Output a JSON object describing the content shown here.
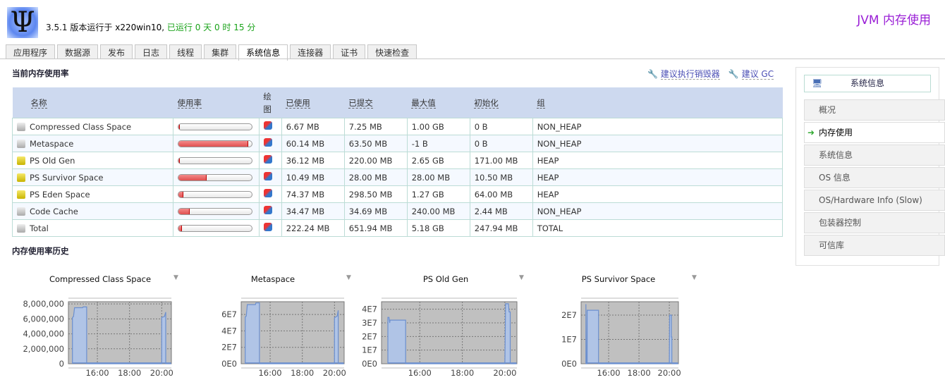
{
  "header": {
    "logo_icon": "psi-logo",
    "version": "3.5.1",
    "runs_on": "版本运行于",
    "host": "x220win10",
    "uptime": "已运行 0 天 0 时 15 分",
    "title": "JVM 内存使用"
  },
  "tabs": [
    {
      "label": "应用程序"
    },
    {
      "label": "数据源"
    },
    {
      "label": "发布"
    },
    {
      "label": "日志"
    },
    {
      "label": "线程"
    },
    {
      "label": "集群"
    },
    {
      "label": "系统信息",
      "active": true
    },
    {
      "label": "连接器"
    },
    {
      "label": "证书"
    },
    {
      "label": "快速检查"
    }
  ],
  "current": {
    "heading": "当前内存使用率",
    "actions": [
      {
        "label": "建议执行销毁器",
        "icon": "wrench-icon"
      },
      {
        "label": "建议 GC",
        "icon": "wrench-icon"
      }
    ],
    "columns": [
      "名称",
      "使用率",
      "绘图",
      "已使用",
      "已提交",
      "最大值",
      "初始化",
      "组"
    ],
    "rows": [
      {
        "name": "Compressed Class Space",
        "usage": 0.7,
        "used": "6.67 MB",
        "committed": "7.25 MB",
        "max": "1.00 GB",
        "init": "0 B",
        "group": "NON_HEAP",
        "heap": false
      },
      {
        "name": "Metaspace",
        "usage": 94.7,
        "used": "60.14 MB",
        "committed": "63.50 MB",
        "max": "-1 B",
        "init": "0 B",
        "group": "NON_HEAP",
        "heap": false
      },
      {
        "name": "PS Old Gen",
        "usage": 1.3,
        "used": "36.12 MB",
        "committed": "220.00 MB",
        "max": "2.65 GB",
        "init": "171.00 MB",
        "group": "HEAP",
        "heap": true
      },
      {
        "name": "PS Survivor Space",
        "usage": 37.5,
        "used": "10.49 MB",
        "committed": "28.00 MB",
        "max": "28.00 MB",
        "init": "10.50 MB",
        "group": "HEAP",
        "heap": true
      },
      {
        "name": "PS Eden Space",
        "usage": 5.7,
        "used": "74.37 MB",
        "committed": "298.50 MB",
        "max": "1.27 GB",
        "init": "64.00 MB",
        "group": "HEAP",
        "heap": true
      },
      {
        "name": "Code Cache",
        "usage": 14.4,
        "used": "34.47 MB",
        "committed": "34.69 MB",
        "max": "240.00 MB",
        "init": "2.44 MB",
        "group": "NON_HEAP",
        "heap": false
      },
      {
        "name": "Total",
        "usage": 4.2,
        "used": "222.24 MB",
        "committed": "651.94 MB",
        "max": "5.18 GB",
        "init": "247.94 MB",
        "group": "TOTAL",
        "heap": false
      }
    ]
  },
  "sidebar": {
    "header": "系统信息",
    "items": [
      {
        "label": "概况"
      },
      {
        "label": "内存使用",
        "current": true
      },
      {
        "label": "系统信息"
      },
      {
        "label": "OS 信息"
      },
      {
        "label": "OS/Hardware Info (Slow)"
      },
      {
        "label": "包装器控制"
      },
      {
        "label": "可信库"
      }
    ]
  },
  "history": {
    "heading": "内存使用率历史"
  },
  "chart_data": [
    {
      "type": "area",
      "title": "Compressed Class Space",
      "xlim": [
        "14:12",
        "20:36"
      ],
      "xticks": [
        "16:00",
        "18:00",
        "20:00"
      ],
      "ylim": [
        0,
        8300000
      ],
      "yticks": [
        0,
        2000000,
        4000000,
        6000000,
        8000000
      ],
      "ytick_labels": [
        "0",
        "2,000,000",
        "4,000,000",
        "6,000,000",
        "8,000,000"
      ],
      "grid": true,
      "points": [
        [
          "14:27",
          0
        ],
        [
          "14:27",
          6200000
        ],
        [
          "14:31",
          6300000
        ],
        [
          "14:35",
          7500000
        ],
        [
          "15:05",
          7500000
        ],
        [
          "15:07",
          7600000
        ],
        [
          "15:20",
          7600000
        ],
        [
          "15:20",
          0
        ],
        [
          "20:00",
          0
        ],
        [
          "20:00",
          6200000
        ],
        [
          "20:10",
          6300000
        ],
        [
          "20:15",
          6900000
        ],
        [
          "20:15",
          0
        ]
      ]
    },
    {
      "type": "area",
      "title": "Metaspace",
      "xlim": [
        "14:12",
        "20:36"
      ],
      "xticks": [
        "16:00",
        "18:00",
        "20:00"
      ],
      "ylim": [
        0,
        75500000
      ],
      "yticks": [
        0,
        20000000,
        40000000,
        60000000
      ],
      "ytick_labels": [
        "0E0",
        "2E7",
        "4E7",
        "6E7"
      ],
      "grid": true,
      "points": [
        [
          "14:27",
          0
        ],
        [
          "14:27",
          57000000
        ],
        [
          "14:31",
          58000000
        ],
        [
          "14:35",
          72000000
        ],
        [
          "15:05",
          72000000
        ],
        [
          "15:07",
          74000000
        ],
        [
          "15:20",
          74000000
        ],
        [
          "15:20",
          0
        ],
        [
          "20:00",
          0
        ],
        [
          "20:00",
          56000000
        ],
        [
          "20:10",
          58000000
        ],
        [
          "20:14",
          65000000
        ],
        [
          "20:14",
          0
        ]
      ]
    },
    {
      "type": "area",
      "title": "PS Old Gen",
      "xlim": [
        "14:12",
        "20:34"
      ],
      "xticks": [
        "16:00",
        "18:00",
        "20:00"
      ],
      "ylim": [
        0,
        45500000
      ],
      "yticks": [
        0,
        10000000,
        20000000,
        30000000,
        40000000
      ],
      "ytick_labels": [
        "0E0",
        "1E7",
        "2E7",
        "3E7",
        "4E7"
      ],
      "grid": true,
      "points": [
        [
          "14:30",
          0
        ],
        [
          "14:30",
          34000000
        ],
        [
          "14:33",
          34000000
        ],
        [
          "14:35",
          30000000
        ],
        [
          "14:36",
          32000000
        ],
        [
          "15:20",
          32000000
        ],
        [
          "15:20",
          0
        ],
        [
          "20:00",
          0
        ],
        [
          "20:02",
          44000000
        ],
        [
          "20:10",
          44000000
        ],
        [
          "20:12",
          38000000
        ],
        [
          "20:15",
          38000000
        ],
        [
          "20:15",
          0
        ]
      ]
    },
    {
      "type": "area",
      "title": "PS Survivor Space",
      "xlim": [
        "14:11",
        "20:36"
      ],
      "xticks": [
        "16:00",
        "18:00",
        "20:00"
      ],
      "ylim": [
        0,
        25500000
      ],
      "yticks": [
        0,
        10000000,
        20000000
      ],
      "ytick_labels": [
        "0E0",
        "1E7",
        "2E7"
      ],
      "grid": true,
      "points": [
        [
          "14:30",
          0
        ],
        [
          "14:30",
          24500000
        ],
        [
          "14:32",
          0
        ],
        [
          "14:35",
          0
        ],
        [
          "14:35",
          22000000
        ],
        [
          "15:20",
          22000000
        ],
        [
          "15:20",
          0
        ],
        [
          "20:00",
          0
        ],
        [
          "20:01",
          20000000
        ],
        [
          "20:08",
          20000000
        ],
        [
          "20:08",
          11000000
        ],
        [
          "20:10",
          11000000
        ],
        [
          "20:10",
          0
        ]
      ]
    }
  ],
  "colors": {
    "accent": "#9a1fd6",
    "uptime": "#1aa31a",
    "table_header": "#cdd9ef",
    "usage_bar": "#e05050",
    "area_fill": "#b0c4e6",
    "plot_bg": "#c0c0c0"
  }
}
